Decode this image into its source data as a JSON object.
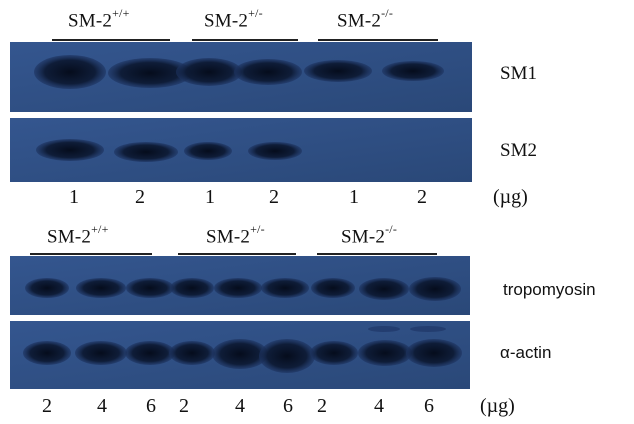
{
  "top_panel": {
    "genotypes": [
      {
        "base": "SM-2",
        "sup": "+/+"
      },
      {
        "base": "SM-2",
        "sup": "+/-"
      },
      {
        "base": "SM-2",
        "sup": "-/-"
      }
    ],
    "blots": [
      {
        "label": "SM1"
      },
      {
        "label": "SM2"
      }
    ],
    "lanes": [
      "1",
      "2",
      "1",
      "2",
      "1",
      "2"
    ],
    "unit": "(µg)"
  },
  "bottom_panel": {
    "genotypes": [
      {
        "base": "SM-2",
        "sup": "+/+"
      },
      {
        "base": "SM-2",
        "sup": "+/-"
      },
      {
        "base": "SM-2",
        "sup": "-/-"
      }
    ],
    "blots": [
      {
        "label": "tropomyosin"
      },
      {
        "label": "α-actin"
      }
    ],
    "lanes": [
      "2",
      "4",
      "6",
      "2",
      "4",
      "6",
      "2",
      "4",
      "6"
    ],
    "unit": "(µg)"
  },
  "colors": {
    "membrane": "#2f4f86",
    "band": "#0c1830"
  }
}
